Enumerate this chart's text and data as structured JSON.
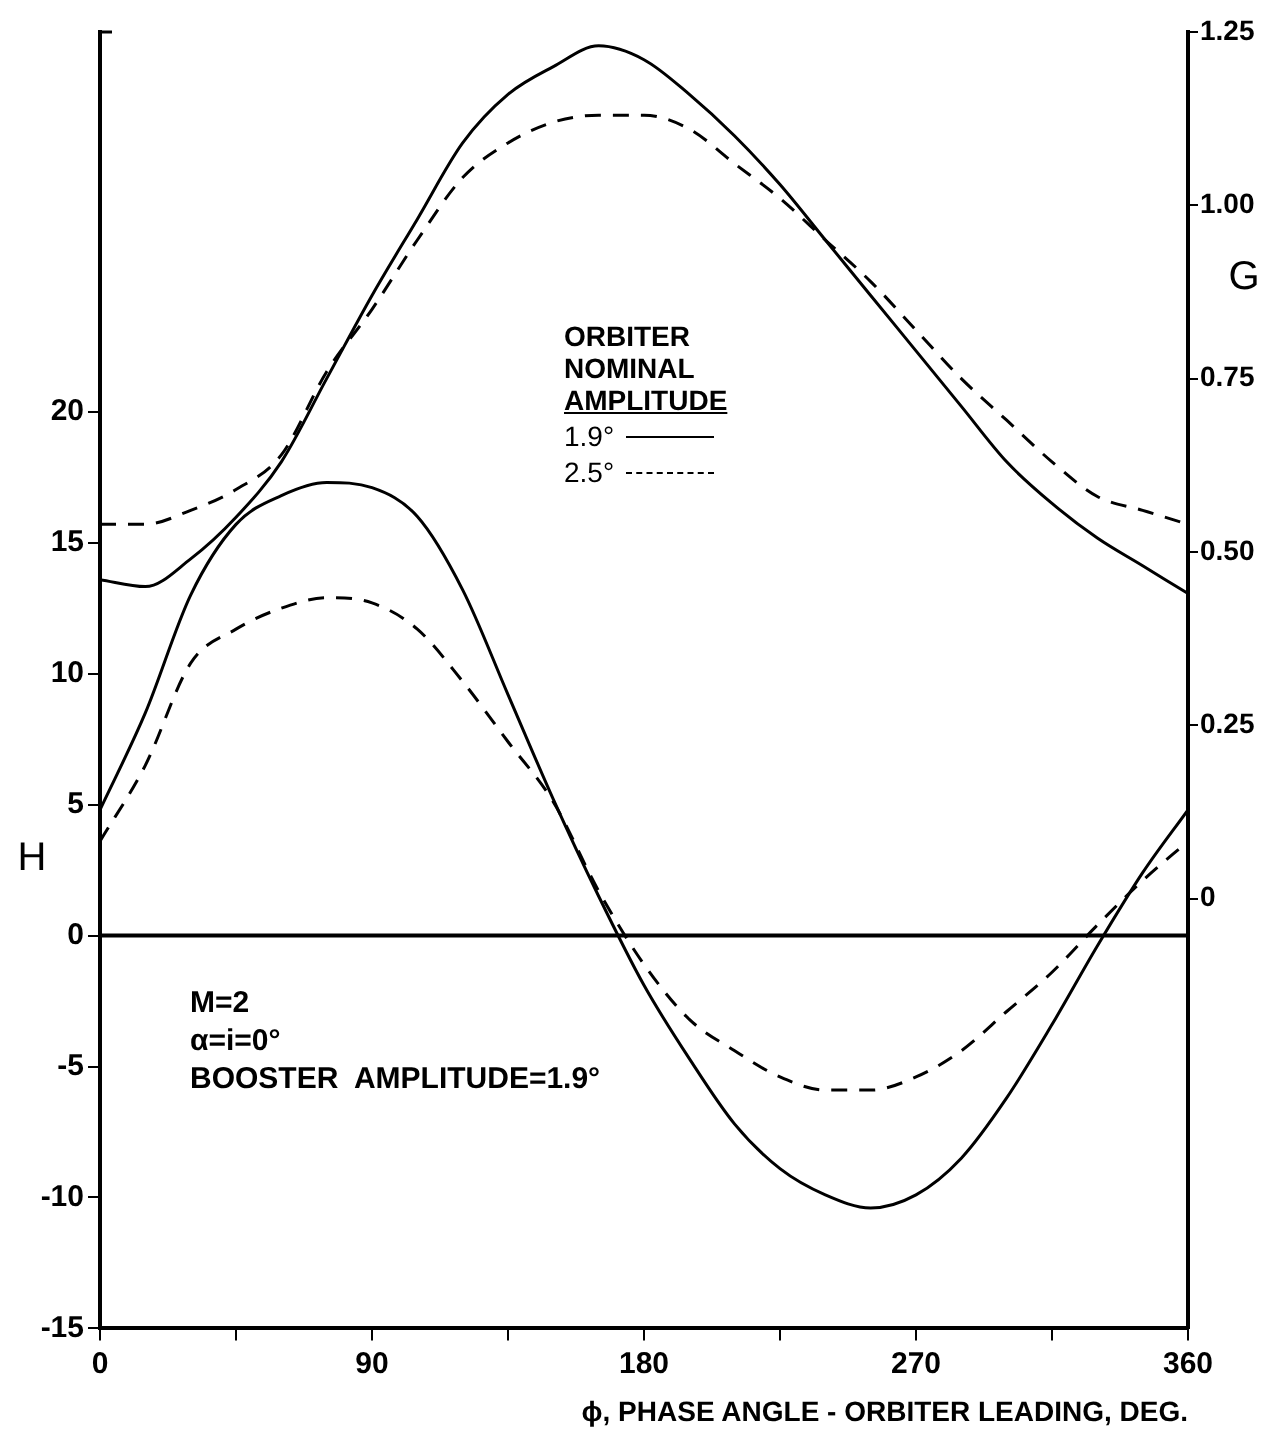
{
  "chart_data": {
    "type": "line",
    "xlabel": "ϕ, PHASE ANGLE - ORBITER LEADING, DEG.",
    "ylabel": "H",
    "y2label": "G",
    "legend_title": "ORBITER NOMINAL AMPLITUDE",
    "legend": "top",
    "grid": false,
    "marker": "none",
    "x": [
      0,
      15,
      30,
      45,
      60,
      75,
      90,
      105,
      120,
      135,
      150,
      165,
      180,
      195,
      210,
      225,
      240,
      255,
      270,
      285,
      300,
      315,
      330,
      345,
      360
    ],
    "xlim": [
      0,
      360
    ],
    "xticks": [
      0,
      {
        "value": 45,
        "label": null
      },
      90,
      {
        "value": 135,
        "label": null
      },
      180,
      {
        "value": 225,
        "label": null
      },
      270,
      {
        "value": 315,
        "label": null
      },
      360
    ],
    "ylim": [
      -15,
      34.5
    ],
    "yticks": [
      -15,
      -10,
      -5,
      0,
      5,
      10,
      15,
      20
    ],
    "y2lim": [
      -0.62,
      1.25
    ],
    "y2ticks": [
      0,
      {
        "value": 0.25,
        "label": "0.25"
      },
      {
        "value": 0.5,
        "label": "0.50"
      },
      {
        "value": 0.75,
        "label": "0.75"
      },
      {
        "value": 1,
        "label": "1.00"
      },
      {
        "value": 1.25,
        "label": "1.25"
      }
    ],
    "ref_lines": [
      {
        "axis": "y",
        "value": 0,
        "color": "#000000"
      }
    ],
    "annotations": [
      "M=2",
      "α=i=0°",
      "BOOSTER  AMPLITUDE=1.9°"
    ],
    "series": [
      {
        "name": "1.9°",
        "color": "#000000",
        "line_style": "solid",
        "values": [
          4.8,
          8.5,
          13.0,
          15.7,
          16.8,
          17.3,
          17.1,
          16.0,
          13.2,
          9.2,
          5.2,
          1.5,
          -1.9,
          -4.7,
          -7.2,
          -8.9,
          -9.9,
          -10.4,
          -9.9,
          -8.5,
          -6.2,
          -3.4,
          -0.4,
          2.4,
          4.8
        ]
      },
      {
        "name": "2.5°",
        "color": "#000000",
        "line_style": "dashed",
        "values": [
          3.6,
          6.5,
          10.4,
          11.7,
          12.5,
          12.9,
          12.7,
          11.7,
          9.7,
          7.4,
          5.1,
          1.7,
          -1.1,
          -3.2,
          -4.4,
          -5.4,
          -5.9,
          -5.9,
          -5.4,
          -4.4,
          -2.9,
          -1.4,
          0.4,
          2.1,
          3.6
        ]
      },
      {
        "color": "#000000",
        "line_style": "solid",
        "axis": "y2",
        "values": [
          0.46,
          0.45,
          0.49,
          0.55,
          0.63,
          0.75,
          0.87,
          0.98,
          1.09,
          1.16,
          1.2,
          1.23,
          1.21,
          1.16,
          1.1,
          1.03,
          0.95,
          0.87,
          0.79,
          0.71,
          0.63,
          0.57,
          0.52,
          0.48,
          0.44
        ]
      },
      {
        "color": "#000000",
        "line_style": "dashed",
        "axis": "y2",
        "values": [
          0.54,
          0.54,
          0.56,
          0.59,
          0.64,
          0.76,
          0.85,
          0.95,
          1.04,
          1.09,
          1.12,
          1.13,
          1.13,
          1.11,
          1.06,
          1.01,
          0.95,
          0.89,
          0.82,
          0.75,
          0.69,
          0.63,
          0.58,
          0.56,
          0.54
        ]
      }
    ]
  }
}
